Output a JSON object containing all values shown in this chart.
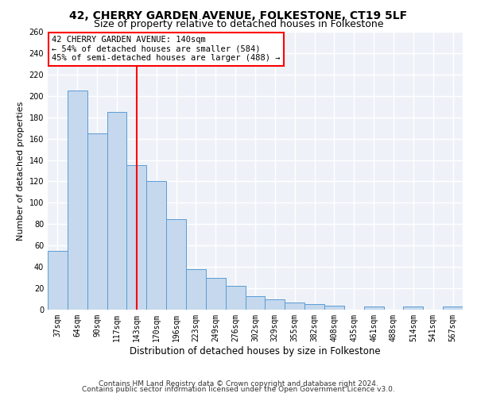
{
  "title1": "42, CHERRY GARDEN AVENUE, FOLKESTONE, CT19 5LF",
  "title2": "Size of property relative to detached houses in Folkestone",
  "xlabel": "Distribution of detached houses by size in Folkestone",
  "ylabel": "Number of detached properties",
  "categories": [
    "37sqm",
    "64sqm",
    "90sqm",
    "117sqm",
    "143sqm",
    "170sqm",
    "196sqm",
    "223sqm",
    "249sqm",
    "276sqm",
    "302sqm",
    "329sqm",
    "355sqm",
    "382sqm",
    "408sqm",
    "435sqm",
    "461sqm",
    "488sqm",
    "514sqm",
    "541sqm",
    "567sqm"
  ],
  "values": [
    55,
    205,
    165,
    185,
    135,
    120,
    85,
    38,
    30,
    22,
    13,
    10,
    7,
    5,
    4,
    0,
    3,
    0,
    3,
    0,
    3
  ],
  "bar_color": "#c5d8ed",
  "bar_edge_color": "#5b9bd5",
  "red_line_index": 4,
  "annotation_text": "42 CHERRY GARDEN AVENUE: 140sqm\n← 54% of detached houses are smaller (584)\n45% of semi-detached houses are larger (488) →",
  "annotation_box_color": "white",
  "annotation_box_edge_color": "red",
  "ylim": [
    0,
    260
  ],
  "yticks": [
    0,
    20,
    40,
    60,
    80,
    100,
    120,
    140,
    160,
    180,
    200,
    220,
    240,
    260
  ],
  "background_color": "#eef2f8",
  "grid_color": "white",
  "footer1": "Contains HM Land Registry data © Crown copyright and database right 2024.",
  "footer2": "Contains public sector information licensed under the Open Government Licence v3.0.",
  "title1_fontsize": 10,
  "title2_fontsize": 9,
  "xlabel_fontsize": 8.5,
  "ylabel_fontsize": 8,
  "tick_fontsize": 7,
  "annotation_fontsize": 7.5,
  "footer_fontsize": 6.5
}
